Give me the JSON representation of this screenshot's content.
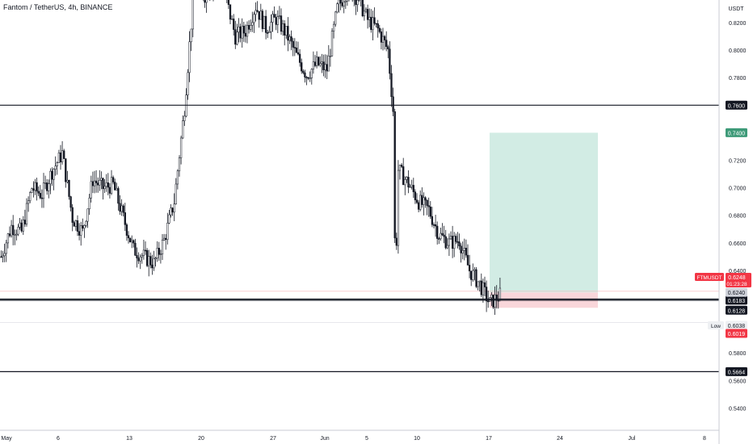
{
  "header": {
    "title": "Fantom / TetherUS, 4h, BINANCE"
  },
  "price_axis": {
    "currency": "USDT",
    "ticks": [
      "0.8200",
      "0.8000",
      "0.7800",
      "0.7200",
      "0.7000",
      "0.6800",
      "0.6600",
      "0.6400",
      "0.5800",
      "0.5600",
      "0.5400"
    ]
  },
  "time_axis": {
    "ticks": [
      "May",
      "6",
      "13",
      "20",
      "27",
      "Jun",
      "5",
      "10",
      "17",
      "24",
      "Jul",
      "8"
    ]
  },
  "levels": [
    {
      "price": 0.76,
      "label": "0.7600"
    },
    {
      "price": 0.6191,
      "label": "0.6191"
    },
    {
      "price": 0.6183,
      "label": "0.6183"
    },
    {
      "price": 0.5664,
      "label": "0.5664"
    }
  ],
  "position": {
    "target_label": "0.7400",
    "entry_label": "0.6240",
    "stop_label": "0.6128",
    "entry": 0.624,
    "target": 0.74,
    "stop": 0.6128,
    "start_date": "Jun 17",
    "end_date": "Jun 28"
  },
  "current_price": {
    "symbol": "FTMUSDT",
    "price": "0.6248",
    "countdown": "01:23:28"
  },
  "low": {
    "label": "Low",
    "price": "0.6038"
  },
  "low_marker": {
    "price": "0.6019"
  },
  "colors": {
    "up": "#131722",
    "down": "#131722",
    "target_zone": "#d2ece4",
    "stop_zone": "#f9d6da",
    "target_badge": "#3d9a78",
    "price_badge": "#f23645",
    "level_badge": "#131722"
  },
  "chart_data": {
    "type": "candlestick",
    "series": [
      {
        "name": "FTMUSDT"
      }
    ],
    "ylim": [
      0.53,
      0.84
    ],
    "x_range": [
      "May 1",
      "Jul 10"
    ],
    "timeframe": "4h"
  }
}
